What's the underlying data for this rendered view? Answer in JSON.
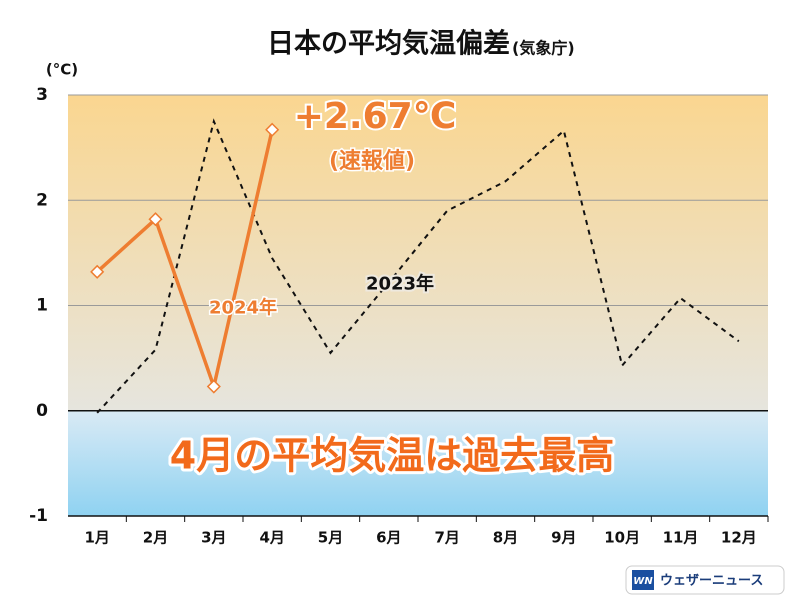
{
  "chart_data": {
    "type": "line",
    "title": "日本の平均気温偏差",
    "subtitle": "(気象庁)",
    "y_unit": "(°C)",
    "categories": [
      "1月",
      "2月",
      "3月",
      "4月",
      "5月",
      "6月",
      "7月",
      "8月",
      "9月",
      "10月",
      "11月",
      "12月"
    ],
    "series": [
      {
        "name": "2023年",
        "color": "#111111",
        "dashed": true,
        "markers": false,
        "values": [
          -0.02,
          0.58,
          2.75,
          1.45,
          0.55,
          1.22,
          1.9,
          2.18,
          2.66,
          0.43,
          1.07,
          0.66
        ]
      },
      {
        "name": "2024年",
        "color": "#ee7d31",
        "dashed": false,
        "markers": true,
        "values": [
          1.32,
          1.82,
          0.23,
          2.67,
          null,
          null,
          null,
          null,
          null,
          null,
          null,
          null
        ]
      }
    ],
    "ylim": [
      -1,
      3
    ],
    "yticks": [
      -1,
      0,
      1,
      2,
      3
    ],
    "grid": true,
    "annotations": {
      "peak": "+2.67℃",
      "peak_note": "(速報値)",
      "headline": "4月の平均気温は過去最高"
    },
    "logo": {
      "mark": "WN",
      "text": "ウェザーニュース"
    }
  }
}
